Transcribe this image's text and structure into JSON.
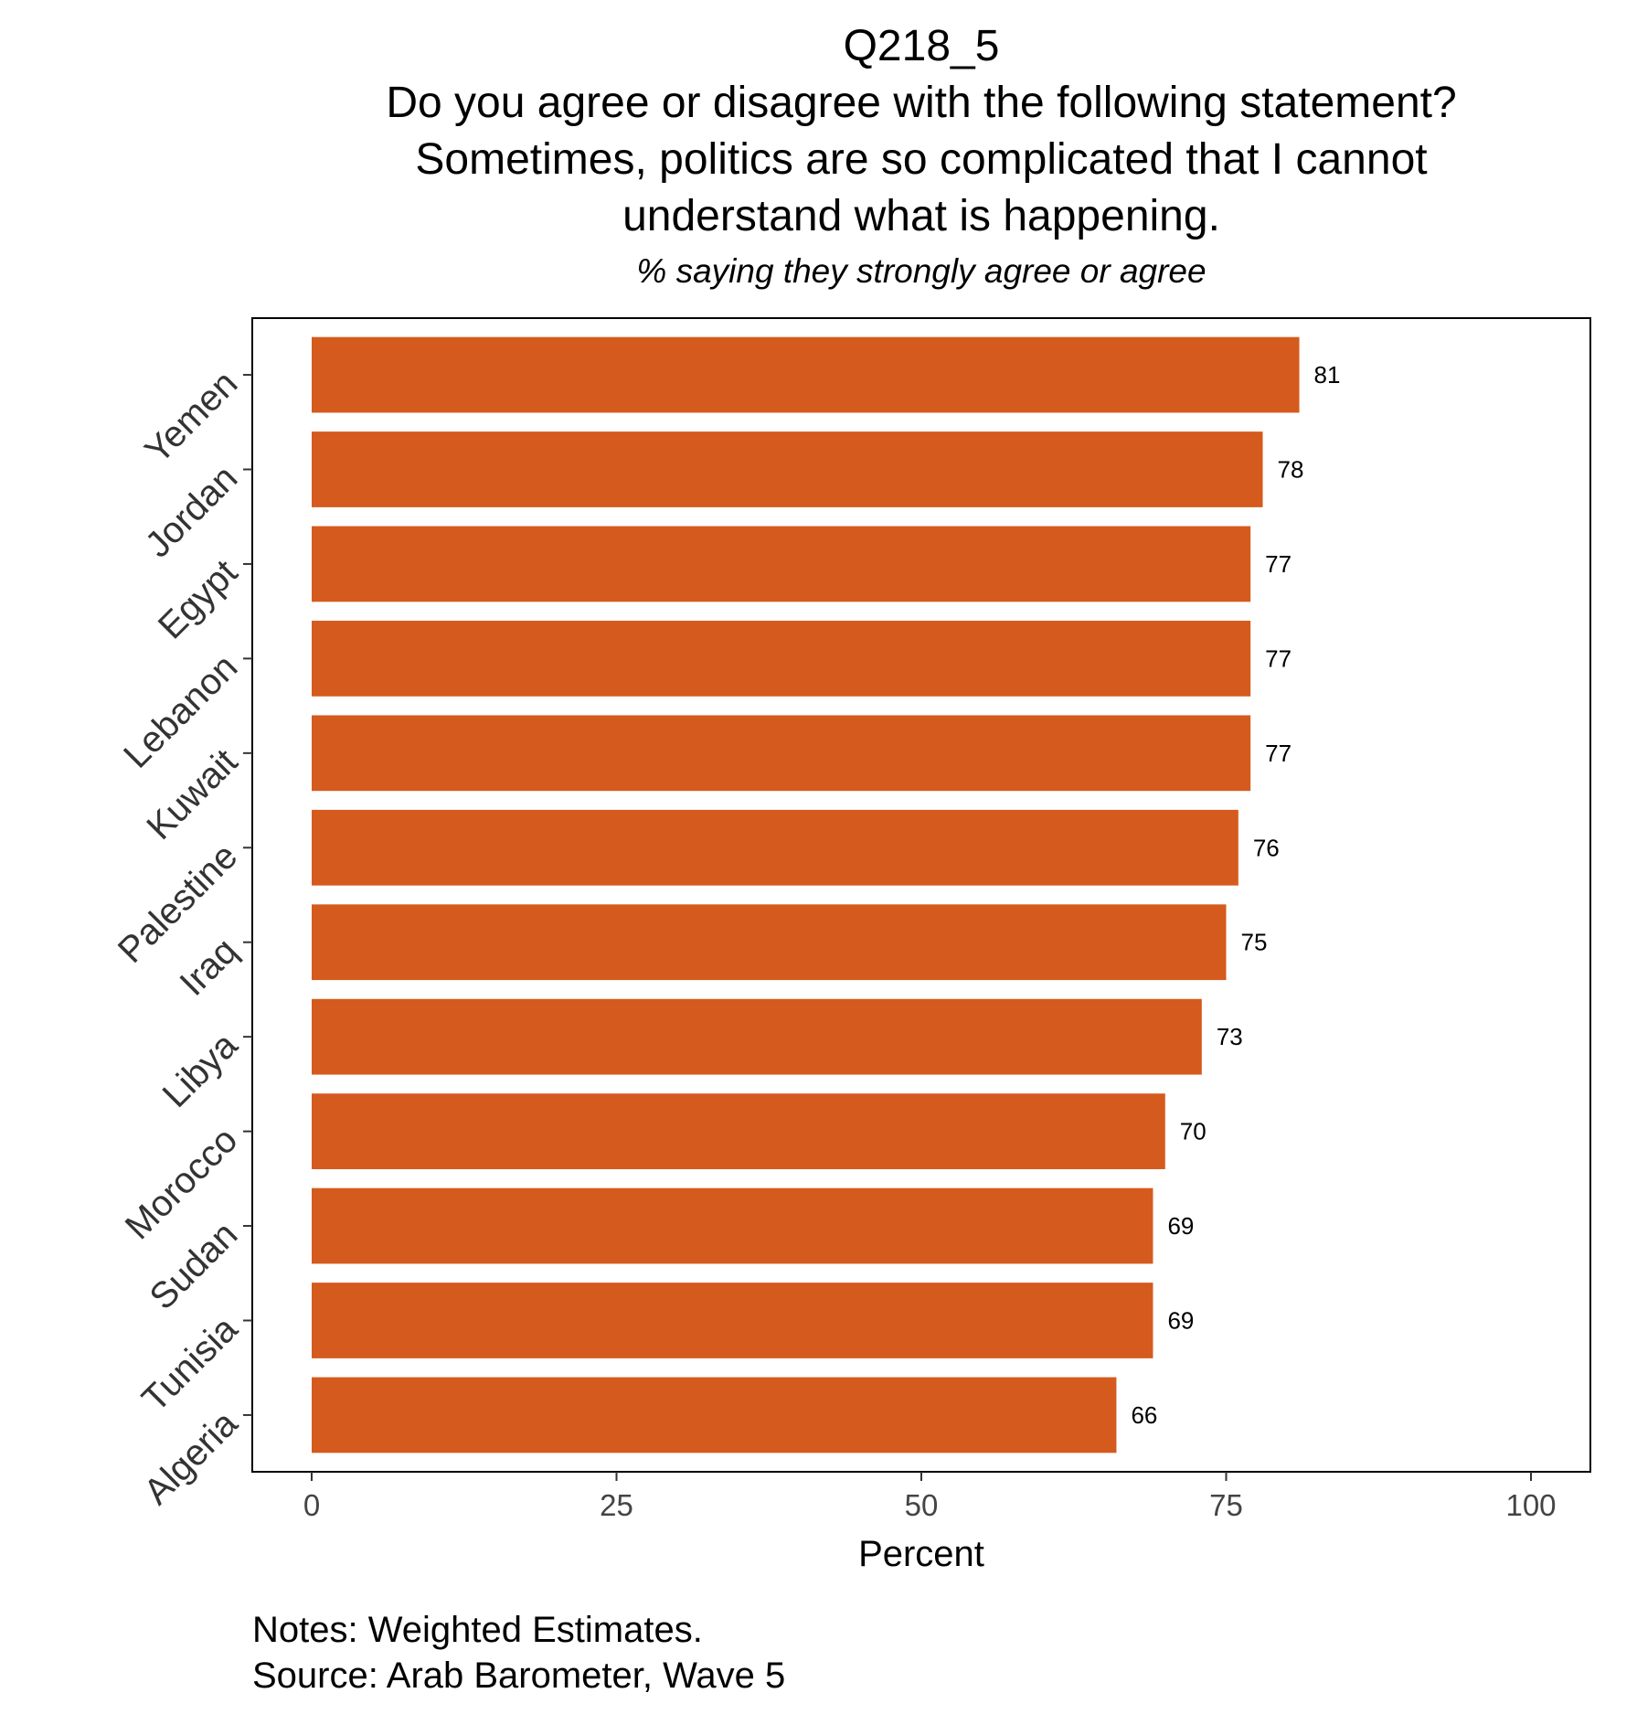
{
  "chart_data": {
    "type": "bar",
    "orientation": "horizontal",
    "title_lines": [
      "Q218_5",
      "Do you agree or disagree with the following statement?",
      "Sometimes, politics are so complicated that I cannot",
      "understand what is happening."
    ],
    "subtitle": "% saying they strongly agree or agree",
    "categories": [
      "Yemen",
      "Jordan",
      "Egypt",
      "Lebanon",
      "Kuwait",
      "Palestine",
      "Iraq",
      "Libya",
      "Morocco",
      "Sudan",
      "Tunisia",
      "Algeria"
    ],
    "values": [
      81,
      78,
      77,
      77,
      77,
      76,
      75,
      73,
      70,
      69,
      69,
      66
    ],
    "value_labels": [
      "81",
      "78",
      "77",
      "77",
      "77",
      "76",
      "75",
      "73",
      "70",
      "69",
      "69",
      "66"
    ],
    "xlabel": "Percent",
    "ylabel": "",
    "xlim": [
      0,
      100
    ],
    "xticks": [
      0,
      25,
      50,
      75,
      100
    ],
    "xtick_labels": [
      "0",
      "25",
      "50",
      "75",
      "100"
    ],
    "grid": false,
    "bar_color": "#D55A1D"
  },
  "notes": {
    "line1": "Notes: Weighted Estimates.",
    "line2": "Source: Arab Barometer, Wave 5"
  }
}
